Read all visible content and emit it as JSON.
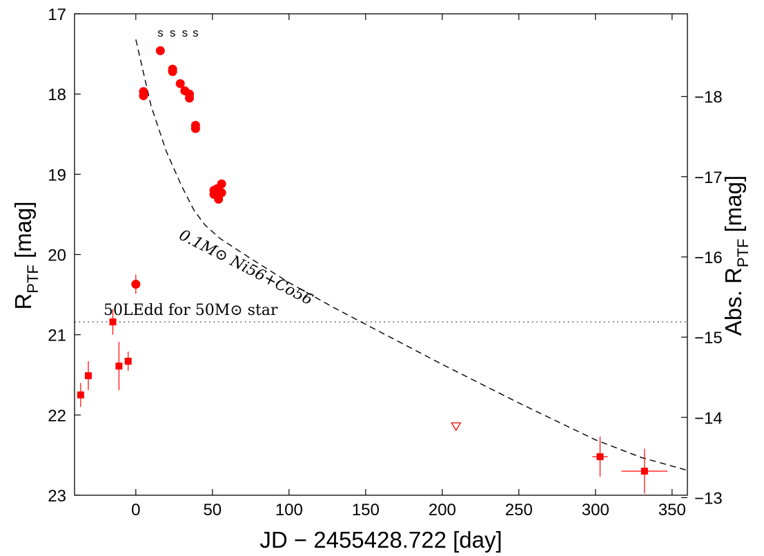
{
  "chart_data": {
    "type": "scatter",
    "xlabel_text": "JD − 2455428.722 [day]",
    "ylabel_main": "R",
    "ylabel_sub": "PTF",
    "ylabel_unit": " [mag]",
    "y2label_main": "Abs. R",
    "y2label_sub": "PTF",
    "y2label_unit": " [mag]",
    "xlim": [
      -40,
      360
    ],
    "ylim": [
      17,
      23
    ],
    "y_inverted": true,
    "xticks": [
      0,
      50,
      100,
      150,
      200,
      250,
      300,
      350
    ],
    "yticks": [
      17,
      18,
      19,
      20,
      21,
      22,
      23
    ],
    "y2_offset": 36.03,
    "y2ticks": [
      -18,
      -17,
      -16,
      -15,
      -14,
      -13
    ],
    "y2ticklabels": [
      "−18",
      "−17",
      "−16",
      "−15",
      "−14",
      "−13"
    ],
    "colors": {
      "data": "#ff0000",
      "axis": "#000000",
      "model": "#000000"
    },
    "series": [
      {
        "name": "circles",
        "marker": "circle",
        "points": [
          {
            "x": 0,
            "y": 20.37,
            "yerr": 0.12
          },
          {
            "x": 5,
            "y": 17.97
          },
          {
            "x": 5,
            "y": 18.02
          },
          {
            "x": 16,
            "y": 17.46
          },
          {
            "x": 24,
            "y": 17.69
          },
          {
            "x": 24,
            "y": 17.72
          },
          {
            "x": 29,
            "y": 17.87
          },
          {
            "x": 32,
            "y": 17.96
          },
          {
            "x": 35,
            "y": 18.0
          },
          {
            "x": 35,
            "y": 18.05
          },
          {
            "x": 39,
            "y": 18.39
          },
          {
            "x": 39,
            "y": 18.43
          },
          {
            "x": 51,
            "y": 19.2
          },
          {
            "x": 51,
            "y": 19.25
          },
          {
            "x": 53,
            "y": 19.18
          },
          {
            "x": 53,
            "y": 19.26
          },
          {
            "x": 54,
            "y": 19.31
          },
          {
            "x": 56,
            "y": 19.12
          },
          {
            "x": 56,
            "y": 19.23
          }
        ]
      },
      {
        "name": "squares",
        "marker": "square",
        "points": [
          {
            "x": -36,
            "y": 21.75,
            "yerr": 0.15
          },
          {
            "x": -31,
            "y": 21.51,
            "yerr": 0.18
          },
          {
            "x": -15,
            "y": 20.84,
            "yerr": 0.16
          },
          {
            "x": -11,
            "y": 21.39,
            "yerr": 0.3
          },
          {
            "x": -5,
            "y": 21.33,
            "yerr": 0.12
          },
          {
            "x": 303,
            "y": 22.52,
            "yerr": 0.25,
            "xerr": 5
          },
          {
            "x": 332,
            "y": 22.7,
            "yerr": 0.28,
            "xerr": 15
          }
        ]
      },
      {
        "name": "upper-limit",
        "marker": "triangle-down",
        "points": [
          {
            "x": 209,
            "y": 22.14
          }
        ]
      }
    ],
    "model_line": {
      "style": "dashed",
      "points": [
        [
          0,
          17.32
        ],
        [
          10,
          18.15
        ],
        [
          20,
          18.72
        ],
        [
          30,
          19.15
        ],
        [
          38,
          19.45
        ],
        [
          45,
          19.63
        ],
        [
          55,
          19.8
        ],
        [
          75,
          20.05
        ],
        [
          100,
          20.35
        ],
        [
          130,
          20.67
        ],
        [
          160,
          20.97
        ],
        [
          200,
          21.37
        ],
        [
          250,
          21.85
        ],
        [
          300,
          22.31
        ],
        [
          330,
          22.53
        ],
        [
          360,
          22.69
        ]
      ]
    },
    "eddington_level": {
      "y": 20.84,
      "style": "dotted"
    },
    "annotations": {
      "model_label": "0.1M⊙ Ni56+Co56",
      "eddington_label": "50LEdd for 50M⊙ star",
      "spectra_marks": [
        "s",
        "s",
        "s",
        "s"
      ],
      "spectra_days": [
        16,
        24,
        32,
        39
      ]
    }
  }
}
